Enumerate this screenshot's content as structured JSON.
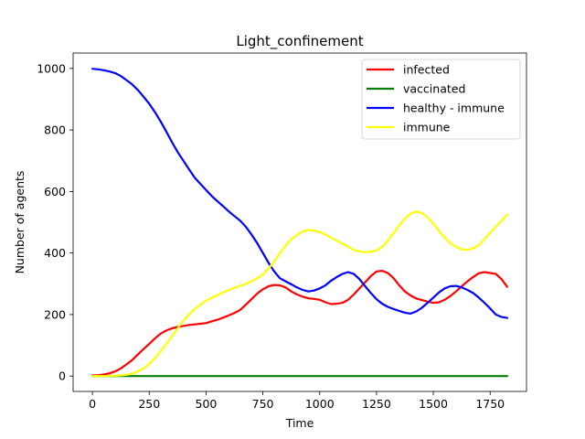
{
  "chart_data": {
    "type": "line",
    "title": "Light_confinement",
    "xlabel": "Time",
    "ylabel": "Number of agents",
    "xlim": [
      -85,
      1910
    ],
    "ylim": [
      -50,
      1050
    ],
    "xticks": [
      0,
      250,
      500,
      750,
      1000,
      1250,
      1500,
      1750
    ],
    "yticks": [
      0,
      200,
      400,
      600,
      800,
      1000
    ],
    "grid": false,
    "legend_position": "top-right",
    "series": [
      {
        "name": "infected",
        "color": "#ff0000",
        "points": [
          [
            0,
            2
          ],
          [
            25,
            3
          ],
          [
            50,
            5
          ],
          [
            75,
            9
          ],
          [
            100,
            15
          ],
          [
            125,
            25
          ],
          [
            150,
            38
          ],
          [
            175,
            52
          ],
          [
            200,
            70
          ],
          [
            225,
            88
          ],
          [
            250,
            105
          ],
          [
            275,
            122
          ],
          [
            300,
            138
          ],
          [
            325,
            148
          ],
          [
            350,
            155
          ],
          [
            375,
            160
          ],
          [
            400,
            163
          ],
          [
            425,
            166
          ],
          [
            450,
            168
          ],
          [
            475,
            170
          ],
          [
            500,
            172
          ],
          [
            525,
            178
          ],
          [
            550,
            183
          ],
          [
            575,
            190
          ],
          [
            600,
            197
          ],
          [
            625,
            205
          ],
          [
            650,
            215
          ],
          [
            675,
            232
          ],
          [
            700,
            250
          ],
          [
            725,
            268
          ],
          [
            750,
            282
          ],
          [
            775,
            292
          ],
          [
            800,
            296
          ],
          [
            825,
            295
          ],
          [
            850,
            288
          ],
          [
            875,
            275
          ],
          [
            900,
            265
          ],
          [
            925,
            258
          ],
          [
            950,
            253
          ],
          [
            975,
            251
          ],
          [
            1000,
            248
          ],
          [
            1025,
            240
          ],
          [
            1050,
            234
          ],
          [
            1075,
            235
          ],
          [
            1100,
            238
          ],
          [
            1125,
            248
          ],
          [
            1150,
            265
          ],
          [
            1175,
            285
          ],
          [
            1200,
            305
          ],
          [
            1225,
            325
          ],
          [
            1250,
            340
          ],
          [
            1275,
            342
          ],
          [
            1300,
            335
          ],
          [
            1325,
            318
          ],
          [
            1350,
            295
          ],
          [
            1375,
            275
          ],
          [
            1400,
            262
          ],
          [
            1425,
            252
          ],
          [
            1450,
            247
          ],
          [
            1475,
            242
          ],
          [
            1500,
            238
          ],
          [
            1525,
            240
          ],
          [
            1550,
            248
          ],
          [
            1575,
            260
          ],
          [
            1600,
            275
          ],
          [
            1625,
            292
          ],
          [
            1650,
            308
          ],
          [
            1675,
            322
          ],
          [
            1700,
            334
          ],
          [
            1725,
            338
          ],
          [
            1750,
            335
          ],
          [
            1775,
            332
          ],
          [
            1800,
            315
          ],
          [
            1825,
            290
          ]
        ]
      },
      {
        "name": "vaccinated",
        "color": "#008000",
        "points": [
          [
            0,
            0
          ],
          [
            1825,
            0
          ]
        ]
      },
      {
        "name": "healthy - immune",
        "color": "#0000ff",
        "points": [
          [
            0,
            999
          ],
          [
            25,
            997
          ],
          [
            50,
            994
          ],
          [
            75,
            990
          ],
          [
            100,
            985
          ],
          [
            125,
            975
          ],
          [
            150,
            962
          ],
          [
            175,
            948
          ],
          [
            200,
            930
          ],
          [
            225,
            908
          ],
          [
            250,
            885
          ],
          [
            275,
            858
          ],
          [
            300,
            828
          ],
          [
            325,
            795
          ],
          [
            350,
            760
          ],
          [
            375,
            728
          ],
          [
            400,
            700
          ],
          [
            425,
            672
          ],
          [
            450,
            645
          ],
          [
            475,
            625
          ],
          [
            500,
            605
          ],
          [
            525,
            585
          ],
          [
            550,
            568
          ],
          [
            575,
            552
          ],
          [
            600,
            535
          ],
          [
            625,
            520
          ],
          [
            650,
            505
          ],
          [
            675,
            485
          ],
          [
            700,
            460
          ],
          [
            725,
            432
          ],
          [
            750,
            400
          ],
          [
            775,
            368
          ],
          [
            800,
            340
          ],
          [
            825,
            318
          ],
          [
            850,
            308
          ],
          [
            875,
            298
          ],
          [
            900,
            288
          ],
          [
            925,
            280
          ],
          [
            950,
            275
          ],
          [
            975,
            278
          ],
          [
            1000,
            285
          ],
          [
            1025,
            295
          ],
          [
            1050,
            310
          ],
          [
            1075,
            322
          ],
          [
            1100,
            332
          ],
          [
            1125,
            338
          ],
          [
            1150,
            332
          ],
          [
            1175,
            315
          ],
          [
            1200,
            292
          ],
          [
            1225,
            270
          ],
          [
            1250,
            250
          ],
          [
            1275,
            235
          ],
          [
            1300,
            225
          ],
          [
            1325,
            218
          ],
          [
            1350,
            212
          ],
          [
            1375,
            206
          ],
          [
            1400,
            203
          ],
          [
            1425,
            210
          ],
          [
            1450,
            222
          ],
          [
            1475,
            238
          ],
          [
            1500,
            255
          ],
          [
            1525,
            272
          ],
          [
            1550,
            285
          ],
          [
            1575,
            292
          ],
          [
            1600,
            293
          ],
          [
            1625,
            288
          ],
          [
            1650,
            280
          ],
          [
            1675,
            270
          ],
          [
            1700,
            255
          ],
          [
            1725,
            238
          ],
          [
            1750,
            220
          ],
          [
            1775,
            200
          ],
          [
            1800,
            192
          ],
          [
            1825,
            189
          ]
        ]
      },
      {
        "name": "immune",
        "color": "#ffff00",
        "points": [
          [
            0,
            0
          ],
          [
            50,
            0
          ],
          [
            100,
            1
          ],
          [
            125,
            2
          ],
          [
            150,
            4
          ],
          [
            175,
            8
          ],
          [
            200,
            15
          ],
          [
            225,
            25
          ],
          [
            250,
            40
          ],
          [
            275,
            58
          ],
          [
            300,
            80
          ],
          [
            325,
            105
          ],
          [
            350,
            130
          ],
          [
            375,
            155
          ],
          [
            400,
            180
          ],
          [
            425,
            200
          ],
          [
            450,
            218
          ],
          [
            475,
            232
          ],
          [
            500,
            245
          ],
          [
            525,
            255
          ],
          [
            550,
            263
          ],
          [
            575,
            272
          ],
          [
            600,
            280
          ],
          [
            625,
            287
          ],
          [
            650,
            293
          ],
          [
            675,
            300
          ],
          [
            700,
            308
          ],
          [
            725,
            318
          ],
          [
            750,
            330
          ],
          [
            775,
            350
          ],
          [
            800,
            372
          ],
          [
            825,
            400
          ],
          [
            850,
            425
          ],
          [
            875,
            445
          ],
          [
            900,
            458
          ],
          [
            925,
            470
          ],
          [
            950,
            475
          ],
          [
            975,
            473
          ],
          [
            1000,
            468
          ],
          [
            1025,
            460
          ],
          [
            1050,
            450
          ],
          [
            1075,
            440
          ],
          [
            1100,
            430
          ],
          [
            1125,
            420
          ],
          [
            1150,
            410
          ],
          [
            1175,
            405
          ],
          [
            1200,
            403
          ],
          [
            1225,
            404
          ],
          [
            1250,
            408
          ],
          [
            1275,
            420
          ],
          [
            1300,
            440
          ],
          [
            1325,
            465
          ],
          [
            1350,
            490
          ],
          [
            1375,
            512
          ],
          [
            1400,
            528
          ],
          [
            1425,
            535
          ],
          [
            1450,
            530
          ],
          [
            1475,
            515
          ],
          [
            1500,
            495
          ],
          [
            1525,
            472
          ],
          [
            1550,
            450
          ],
          [
            1575,
            432
          ],
          [
            1600,
            420
          ],
          [
            1625,
            412
          ],
          [
            1650,
            410
          ],
          [
            1675,
            415
          ],
          [
            1700,
            425
          ],
          [
            1725,
            445
          ],
          [
            1750,
            465
          ],
          [
            1775,
            485
          ],
          [
            1800,
            505
          ],
          [
            1825,
            525
          ]
        ]
      }
    ]
  }
}
